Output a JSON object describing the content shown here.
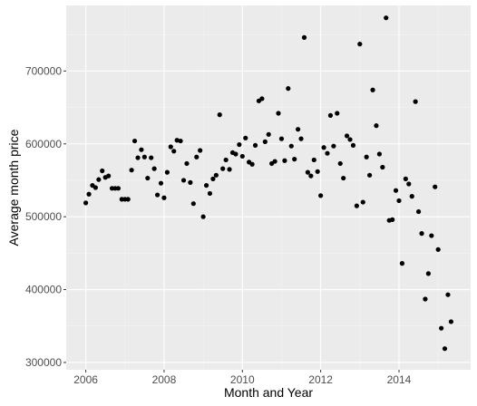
{
  "colors": {
    "panel": "#ebebeb",
    "grid_major": "#ffffff",
    "grid_minor": "#f4f4f4",
    "point": "#000000",
    "tick_text": "#4d4d4d",
    "axis_title": "#000000"
  },
  "chart_data": {
    "type": "scatter",
    "title": "",
    "xlabel": "Month and Year",
    "ylabel": "Average month price",
    "x_unit": "year",
    "xlim": [
      2005.5,
      2015.83
    ],
    "ylim": [
      290000,
      790000
    ],
    "x_ticks": [
      2006,
      2008,
      2010,
      2012,
      2014
    ],
    "x_tick_labels": [
      "2006",
      "2008",
      "2010",
      "2012",
      "2014"
    ],
    "y_ticks": [
      300000,
      400000,
      500000,
      600000,
      700000
    ],
    "y_tick_labels": [
      "300000",
      "400000",
      "500000",
      "600000",
      "700000"
    ],
    "grid": true,
    "legend": "none",
    "points": [
      [
        2006.0,
        519000
      ],
      [
        2006.08,
        531000
      ],
      [
        2006.17,
        543000
      ],
      [
        2006.25,
        540000
      ],
      [
        2006.33,
        551000
      ],
      [
        2006.42,
        563000
      ],
      [
        2006.5,
        554000
      ],
      [
        2006.58,
        556000
      ],
      [
        2006.67,
        539000
      ],
      [
        2006.75,
        539000
      ],
      [
        2006.83,
        539000
      ],
      [
        2006.92,
        524000
      ],
      [
        2007.0,
        524000
      ],
      [
        2007.08,
        524000
      ],
      [
        2007.17,
        564000
      ],
      [
        2007.25,
        604000
      ],
      [
        2007.33,
        581000
      ],
      [
        2007.42,
        592000
      ],
      [
        2007.5,
        582000
      ],
      [
        2007.58,
        553000
      ],
      [
        2007.67,
        581000
      ],
      [
        2007.75,
        566000
      ],
      [
        2007.83,
        530000
      ],
      [
        2007.92,
        546000
      ],
      [
        2008.0,
        526000
      ],
      [
        2008.08,
        561000
      ],
      [
        2008.17,
        596000
      ],
      [
        2008.25,
        590000
      ],
      [
        2008.33,
        605000
      ],
      [
        2008.42,
        604000
      ],
      [
        2008.5,
        550000
      ],
      [
        2008.58,
        573000
      ],
      [
        2008.67,
        547000
      ],
      [
        2008.75,
        518000
      ],
      [
        2008.83,
        582000
      ],
      [
        2008.92,
        591000
      ],
      [
        2009.0,
        500000
      ],
      [
        2009.08,
        543000
      ],
      [
        2009.17,
        532000
      ],
      [
        2009.25,
        552000
      ],
      [
        2009.33,
        557000
      ],
      [
        2009.42,
        640000
      ],
      [
        2009.5,
        566000
      ],
      [
        2009.58,
        578000
      ],
      [
        2009.67,
        565000
      ],
      [
        2009.75,
        588000
      ],
      [
        2009.83,
        586000
      ],
      [
        2009.92,
        599000
      ],
      [
        2010.0,
        583000
      ],
      [
        2010.08,
        608000
      ],
      [
        2010.17,
        575000
      ],
      [
        2010.25,
        572000
      ],
      [
        2010.33,
        598000
      ],
      [
        2010.42,
        659000
      ],
      [
        2010.5,
        662000
      ],
      [
        2010.58,
        603000
      ],
      [
        2010.67,
        613000
      ],
      [
        2010.75,
        573000
      ],
      [
        2010.83,
        576000
      ],
      [
        2010.92,
        642000
      ],
      [
        2011.0,
        607000
      ],
      [
        2011.08,
        577000
      ],
      [
        2011.17,
        676000
      ],
      [
        2011.25,
        597000
      ],
      [
        2011.33,
        579000
      ],
      [
        2011.42,
        620000
      ],
      [
        2011.5,
        607000
      ],
      [
        2011.58,
        746000
      ],
      [
        2011.67,
        561000
      ],
      [
        2011.75,
        556000
      ],
      [
        2011.83,
        578000
      ],
      [
        2011.92,
        562000
      ],
      [
        2012.0,
        529000
      ],
      [
        2012.08,
        595000
      ],
      [
        2012.17,
        587000
      ],
      [
        2012.25,
        639000
      ],
      [
        2012.33,
        597000
      ],
      [
        2012.42,
        642000
      ],
      [
        2012.5,
        573000
      ],
      [
        2012.58,
        553000
      ],
      [
        2012.67,
        611000
      ],
      [
        2012.75,
        606000
      ],
      [
        2012.83,
        598000
      ],
      [
        2012.92,
        515000
      ],
      [
        2013.0,
        737000
      ],
      [
        2013.08,
        520000
      ],
      [
        2013.17,
        582000
      ],
      [
        2013.25,
        557000
      ],
      [
        2013.33,
        674000
      ],
      [
        2013.42,
        625000
      ],
      [
        2013.5,
        586000
      ],
      [
        2013.58,
        568000
      ],
      [
        2013.67,
        773000
      ],
      [
        2013.75,
        495000
      ],
      [
        2013.83,
        496000
      ],
      [
        2013.92,
        536000
      ],
      [
        2014.0,
        522000
      ],
      [
        2014.08,
        436000
      ],
      [
        2014.17,
        552000
      ],
      [
        2014.25,
        545000
      ],
      [
        2014.33,
        528000
      ],
      [
        2014.42,
        658000
      ],
      [
        2014.5,
        507000
      ],
      [
        2014.58,
        477000
      ],
      [
        2014.67,
        387000
      ],
      [
        2014.75,
        422000
      ],
      [
        2014.83,
        474000
      ],
      [
        2014.92,
        541000
      ],
      [
        2015.0,
        455000
      ],
      [
        2015.08,
        347000
      ],
      [
        2015.17,
        319000
      ],
      [
        2015.25,
        393000
      ],
      [
        2015.33,
        356000
      ]
    ]
  }
}
